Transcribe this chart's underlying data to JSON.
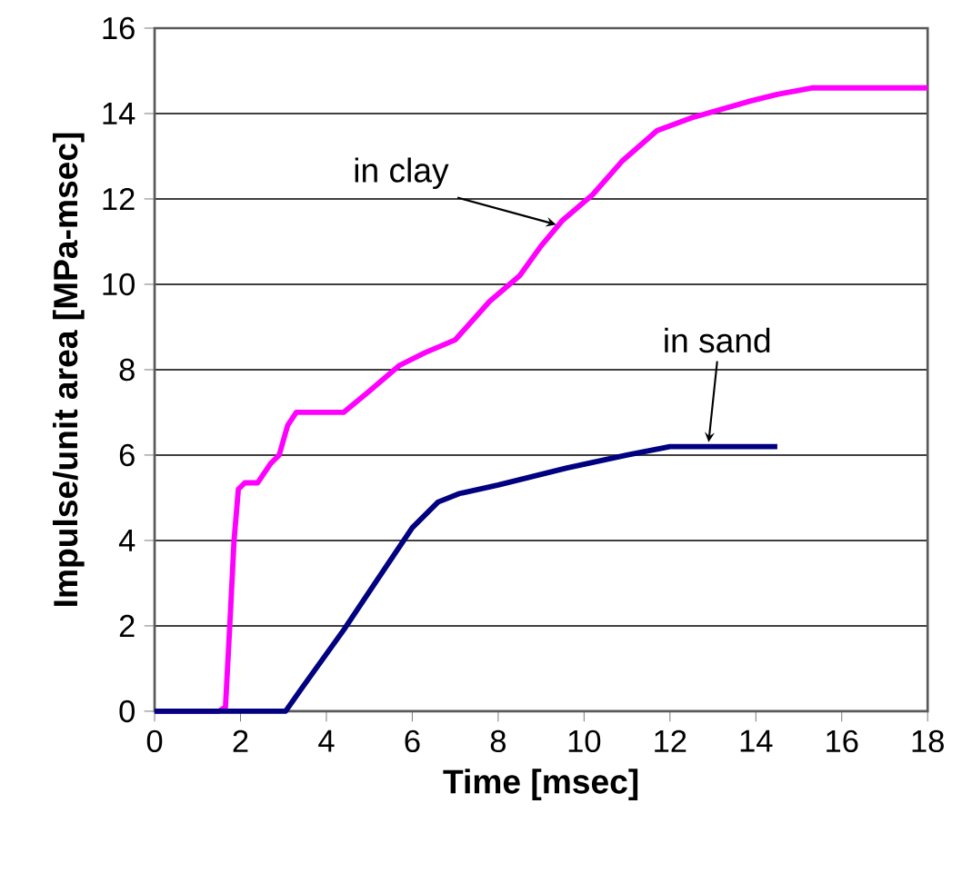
{
  "chart_data": {
    "type": "line",
    "xlabel": "Time [msec]",
    "ylabel": "Impulse/unit area [MPa-msec]",
    "xlim": [
      0,
      18
    ],
    "ylim": [
      0,
      16
    ],
    "xticks": [
      0,
      2,
      4,
      6,
      8,
      10,
      12,
      14,
      16,
      18
    ],
    "yticks": [
      0,
      2,
      4,
      6,
      8,
      10,
      12,
      14,
      16
    ],
    "grid": "y",
    "marker": "none",
    "line_style": "solid",
    "series": [
      {
        "color": "#ff00ff",
        "x": [
          0,
          1.5,
          1.65,
          1.75,
          1.85,
          1.95,
          2.1,
          2.4,
          2.7,
          2.9,
          3.1,
          3.3,
          3.6,
          4.4,
          5.0,
          5.7,
          6.3,
          7.0,
          7.8,
          8.5,
          9.0,
          9.5,
          10.2,
          10.9,
          11.7,
          12.5,
          13.9,
          14.5,
          15.3,
          18
        ],
        "values": [
          0,
          0,
          0.1,
          2,
          4,
          5.2,
          5.35,
          5.35,
          5.8,
          6.0,
          6.7,
          7.0,
          7.0,
          7.0,
          7.5,
          8.1,
          8.4,
          8.7,
          9.6,
          10.2,
          10.9,
          11.5,
          12.1,
          12.9,
          13.6,
          13.9,
          14.3,
          14.45,
          14.6,
          14.6
        ]
      },
      {
        "color": "#000080",
        "x": [
          0,
          3.05,
          3.4,
          4.4,
          5.2,
          6.0,
          6.6,
          7.1,
          8.0,
          9.6,
          11,
          12.0,
          14.5
        ],
        "values": [
          0,
          0,
          0.5,
          1.9,
          3.1,
          4.3,
          4.9,
          5.1,
          5.3,
          5.7,
          6.0,
          6.2,
          6.2
        ]
      }
    ],
    "annotations": [
      {
        "text": "in clay",
        "x": 9.35,
        "y": 11.4
      },
      {
        "text": "in sand",
        "x": 12.9,
        "y": 6.3
      }
    ]
  }
}
